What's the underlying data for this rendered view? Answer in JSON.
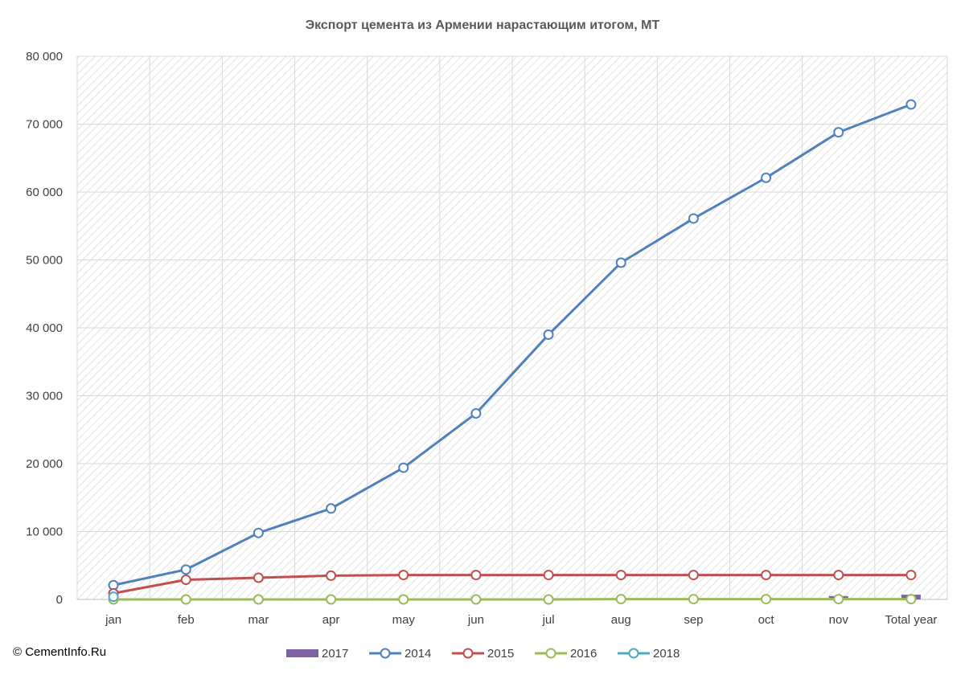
{
  "chart_data": {
    "type": "line",
    "title": "Экспорт цемента из Армении нарастающим итогом, МТ",
    "xlabel": "",
    "ylabel": "",
    "categories": [
      "jan",
      "feb",
      "mar",
      "apr",
      "may",
      "jun",
      "jul",
      "aug",
      "sep",
      "oct",
      "nov",
      "Total year"
    ],
    "ylim": [
      0,
      80000
    ],
    "yticks": [
      0,
      10000,
      20000,
      30000,
      40000,
      50000,
      60000,
      70000,
      80000
    ],
    "ytick_labels": [
      "0",
      "10 000",
      "20 000",
      "30 000",
      "40 000",
      "50 000",
      "60 000",
      "70 000",
      "80 000"
    ],
    "grid": true,
    "legend_position": "bottom",
    "bar_series": [
      {
        "name": "2017",
        "color": "#8064a2",
        "values": [
          null,
          null,
          null,
          null,
          null,
          null,
          null,
          null,
          null,
          null,
          500,
          700
        ]
      }
    ],
    "series": [
      {
        "name": "2014",
        "color": "#4f81bd",
        "values": [
          2100,
          4400,
          9800,
          13400,
          19400,
          27400,
          39000,
          49600,
          56100,
          62100,
          68800,
          72900
        ]
      },
      {
        "name": "2015",
        "color": "#c0504d",
        "values": [
          900,
          2900,
          3200,
          3500,
          3600,
          3600,
          3600,
          3600,
          3600,
          3600,
          3600,
          3600
        ]
      },
      {
        "name": "2016",
        "color": "#9bbb59",
        "values": [
          0,
          0,
          0,
          0,
          0,
          0,
          0,
          50,
          50,
          50,
          50,
          50
        ]
      },
      {
        "name": "2018",
        "color": "#4bacc6",
        "values": [
          400,
          null,
          null,
          null,
          null,
          null,
          null,
          null,
          null,
          null,
          null,
          null
        ]
      }
    ],
    "legend_order": [
      "2017",
      "2014",
      "2015",
      "2016",
      "2018"
    ]
  },
  "copyright": "© CementInfo.Ru"
}
